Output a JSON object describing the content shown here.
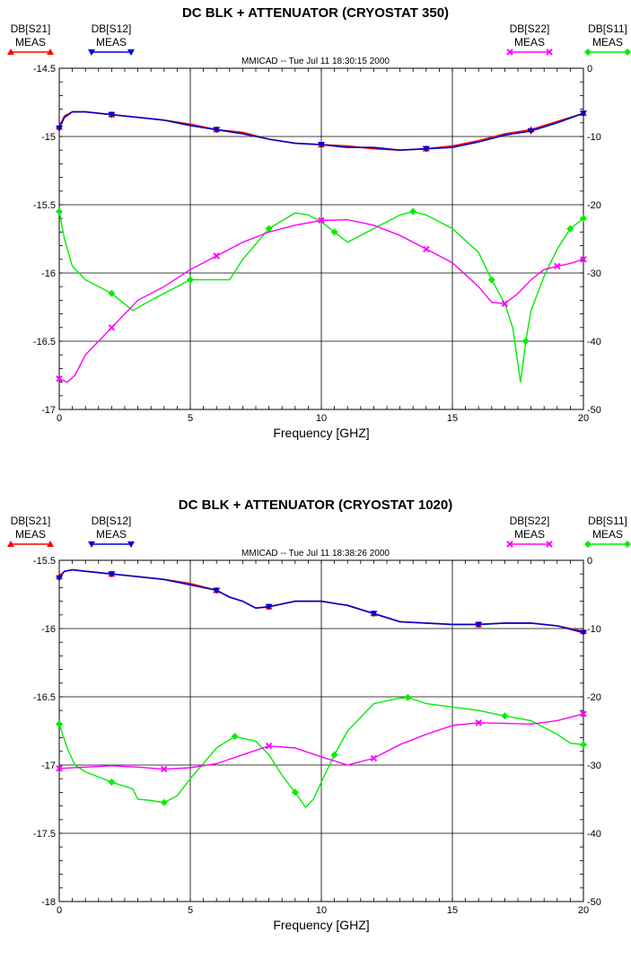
{
  "chart_data": [
    {
      "type": "line",
      "title": "DC BLK + ATTENUATOR (CRYOSTAT 350)",
      "timestamp": "MMICAD -- Tue Jul 11 18:30:15 2000",
      "xlabel": "Frequency [GHZ]",
      "xlim": [
        0,
        20
      ],
      "x_ticks": [
        "0",
        "5",
        "10",
        "15",
        "20"
      ],
      "ylim_left": [
        -17,
        -14.5
      ],
      "y_ticks_left": [
        "-14.5",
        "-15",
        "-15.5",
        "-16",
        "-16.5",
        "-17"
      ],
      "ylim_right": [
        -50,
        0
      ],
      "y_ticks_right": [
        "0",
        "-10",
        "-20",
        "-30",
        "-40",
        "-50"
      ],
      "grid": true,
      "series": [
        {
          "name": "DB[S21] MEAS",
          "label_top": "DB[S21]",
          "label_bottom": "MEAS",
          "color": "#ff0000",
          "marker": "triangle-up",
          "axis": "left",
          "x": [
            0,
            0.2,
            0.5,
            1,
            2,
            3,
            4,
            5,
            6,
            7,
            8,
            9,
            10,
            11,
            12,
            13,
            14,
            15,
            16,
            17,
            18,
            19,
            20
          ],
          "y": [
            -14.93,
            -14.85,
            -14.82,
            -14.82,
            -14.84,
            -14.86,
            -14.88,
            -14.91,
            -14.95,
            -14.97,
            -15.02,
            -15.05,
            -15.06,
            -15.07,
            -15.09,
            -15.1,
            -15.09,
            -15.07,
            -15.03,
            -14.98,
            -14.95,
            -14.89,
            -14.83
          ]
        },
        {
          "name": "DB[S12] MEAS",
          "label_top": "DB[S12]",
          "label_bottom": "MEAS",
          "color": "#0000cc",
          "marker": "triangle-down",
          "axis": "left",
          "x": [
            0,
            0.2,
            0.5,
            1,
            2,
            3,
            4,
            5,
            6,
            7,
            8,
            9,
            10,
            11,
            12,
            13,
            14,
            15,
            16,
            17,
            18,
            19,
            20
          ],
          "y": [
            -14.94,
            -14.86,
            -14.82,
            -14.82,
            -14.84,
            -14.86,
            -14.88,
            -14.92,
            -14.95,
            -14.98,
            -15.02,
            -15.05,
            -15.06,
            -15.08,
            -15.08,
            -15.1,
            -15.09,
            -15.08,
            -15.04,
            -14.99,
            -14.96,
            -14.9,
            -14.83
          ]
        },
        {
          "name": "DB[S22] MEAS",
          "label_top": "DB[S22]",
          "label_bottom": "MEAS",
          "color": "#ff00ff",
          "marker": "x",
          "axis": "right",
          "x": [
            0,
            0.3,
            0.6,
            1,
            2,
            3,
            4,
            5,
            6,
            7,
            8,
            9,
            10,
            11,
            12,
            13,
            14,
            15,
            16,
            16.5,
            17,
            17.5,
            18,
            18.5,
            19,
            19.5,
            20
          ],
          "y": [
            -45.5,
            -46,
            -45,
            -42,
            -38,
            -34,
            -32,
            -29.5,
            -27.5,
            -25.5,
            -24,
            -23,
            -22.3,
            -22.2,
            -23,
            -24.5,
            -26.5,
            -28.5,
            -32,
            -34.3,
            -34.5,
            -33,
            -31,
            -29.5,
            -29,
            -28.6,
            -28
          ]
        },
        {
          "name": "DB[S11] MEAS",
          "label_top": "DB[S11]",
          "label_bottom": "MEAS",
          "color": "#00ee00",
          "marker": "diamond",
          "axis": "right",
          "x": [
            0,
            0.2,
            0.5,
            1,
            2,
            2.8,
            3.5,
            4,
            5,
            6,
            6.5,
            7,
            8,
            9,
            9.5,
            10,
            10.5,
            11,
            12,
            13,
            13.5,
            14,
            15,
            16,
            16.5,
            17,
            17.3,
            17.6,
            17.8,
            18,
            18.5,
            19,
            19.5,
            20
          ],
          "y": [
            -21,
            -25,
            -29,
            -31,
            -33,
            -35.5,
            -34,
            -33,
            -31,
            -31,
            -31,
            -28,
            -23.5,
            -21.2,
            -21.5,
            -22.5,
            -24,
            -25.5,
            -23.5,
            -21.5,
            -21,
            -21.5,
            -23.5,
            -27,
            -31,
            -34.5,
            -38,
            -46,
            -40,
            -35.5,
            -30.5,
            -26.5,
            -23.5,
            -22
          ]
        }
      ]
    },
    {
      "type": "line",
      "title": "DC BLK + ATTENUATOR (CRYOSTAT 1020)",
      "timestamp": "MMICAD -- Tue Jul 11 18:38:26 2000",
      "xlabel": "Frequency [GHZ]",
      "xlim": [
        0,
        20
      ],
      "x_ticks": [
        "0",
        "5",
        "10",
        "15",
        "20"
      ],
      "ylim_left": [
        -18,
        -15.5
      ],
      "y_ticks_left": [
        "-15.5",
        "-16",
        "-16.5",
        "-17",
        "-17.5",
        "-18"
      ],
      "ylim_right": [
        -50,
        0
      ],
      "y_ticks_right": [
        "0",
        "-10",
        "-20",
        "-30",
        "-40",
        "-50"
      ],
      "grid": true,
      "series": [
        {
          "name": "DB[S21] MEAS",
          "label_top": "DB[S21]",
          "label_bottom": "MEAS",
          "color": "#ff0000",
          "marker": "triangle-up",
          "axis": "left",
          "x": [
            0,
            0.2,
            0.5,
            1,
            2,
            3,
            4,
            5,
            6,
            6.5,
            7,
            7.5,
            8,
            9,
            10,
            11,
            12,
            13,
            14,
            15,
            16,
            17,
            18,
            19,
            20
          ],
          "y": [
            -15.62,
            -15.58,
            -15.57,
            -15.58,
            -15.6,
            -15.62,
            -15.64,
            -15.67,
            -15.72,
            -15.77,
            -15.8,
            -15.85,
            -15.84,
            -15.8,
            -15.8,
            -15.83,
            -15.89,
            -15.95,
            -15.96,
            -15.97,
            -15.97,
            -15.96,
            -15.96,
            -15.98,
            -16.02
          ]
        },
        {
          "name": "DB[S12] MEAS",
          "label_top": "DB[S12]",
          "label_bottom": "MEAS",
          "color": "#0000cc",
          "marker": "triangle-down",
          "axis": "left",
          "x": [
            0,
            0.2,
            0.5,
            1,
            2,
            3,
            4,
            5,
            6,
            6.5,
            7,
            7.5,
            8,
            9,
            10,
            11,
            12,
            13,
            14,
            15,
            16,
            17,
            18,
            19,
            20
          ],
          "y": [
            -15.63,
            -15.58,
            -15.57,
            -15.58,
            -15.6,
            -15.62,
            -15.64,
            -15.68,
            -15.72,
            -15.77,
            -15.8,
            -15.85,
            -15.84,
            -15.8,
            -15.8,
            -15.83,
            -15.89,
            -15.95,
            -15.96,
            -15.97,
            -15.97,
            -15.96,
            -15.96,
            -15.98,
            -16.03
          ]
        },
        {
          "name": "DB[S22] MEAS",
          "label_top": "DB[S22]",
          "label_bottom": "MEAS",
          "color": "#ff00ff",
          "marker": "x",
          "axis": "right",
          "x": [
            0,
            1,
            2,
            3,
            4,
            5,
            6,
            7,
            8,
            9,
            10,
            11,
            12,
            13,
            14,
            15,
            16,
            17,
            18,
            19,
            20
          ],
          "y": [
            -30.5,
            -30.3,
            -30.1,
            -30.3,
            -30.6,
            -30.4,
            -29.8,
            -28.5,
            -27.2,
            -27.5,
            -28.8,
            -30,
            -29,
            -27,
            -25.5,
            -24.2,
            -23.8,
            -23.9,
            -24,
            -23.5,
            -22.5
          ]
        },
        {
          "name": "DB[S11] MEAS",
          "label_top": "DB[S11]",
          "label_bottom": "MEAS",
          "color": "#00ee00",
          "marker": "diamond",
          "axis": "right",
          "x": [
            0,
            0.3,
            0.6,
            1,
            2,
            2.8,
            3,
            3.5,
            4,
            4.5,
            5,
            6,
            6.7,
            7.5,
            8,
            8.5,
            9,
            9.4,
            9.7,
            10,
            10.5,
            11,
            12,
            13,
            13.3,
            14,
            15,
            16,
            17,
            18,
            19,
            19.5,
            20
          ],
          "y": [
            -24,
            -27.5,
            -30,
            -31,
            -32.5,
            -33.5,
            -35,
            -35.2,
            -35.5,
            -34.5,
            -32,
            -27.5,
            -25.8,
            -26.5,
            -28.5,
            -31.5,
            -34,
            -36.2,
            -35,
            -32.5,
            -28.5,
            -25,
            -21,
            -20.2,
            -20.1,
            -21,
            -21.5,
            -22,
            -22.8,
            -23.5,
            -25.5,
            -26.8,
            -27
          ]
        }
      ]
    }
  ]
}
